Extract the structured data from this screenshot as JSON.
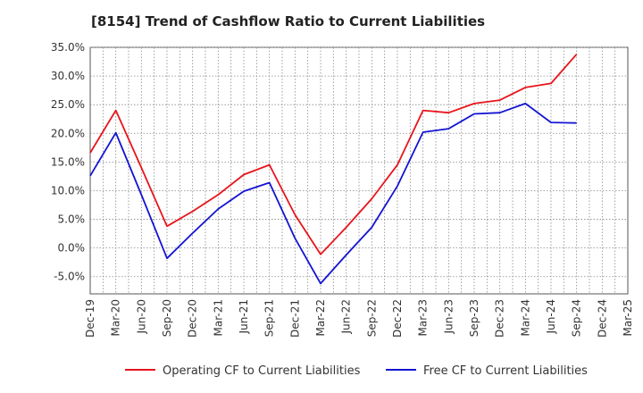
{
  "chart_data": {
    "type": "line",
    "title": "[8154]  Trend of Cashflow Ratio to Current Liabilities",
    "xlabel": "",
    "ylabel": "",
    "ylim": [
      -8.0,
      35.0
    ],
    "yticks": [
      "35.0%",
      "30.0%",
      "25.0%",
      "20.0%",
      "15.0%",
      "10.0%",
      "5.0%",
      "0.0%",
      "-5.0%"
    ],
    "ytick_values": [
      35,
      30,
      25,
      20,
      15,
      10,
      5,
      0,
      -5
    ],
    "categories": [
      "Dec-19",
      "Mar-20",
      "Jun-20",
      "Sep-20",
      "Dec-20",
      "Mar-21",
      "Jun-21",
      "Sep-21",
      "Dec-21",
      "Mar-22",
      "Jun-22",
      "Sep-22",
      "Dec-22",
      "Mar-23",
      "Jun-23",
      "Sep-23",
      "Dec-23",
      "Mar-24",
      "Jun-24",
      "Sep-24",
      "Dec-24",
      "Mar-25"
    ],
    "grid": true,
    "legend_position": "bottom",
    "series": [
      {
        "name": "Operating CF to Current Liabilities",
        "color": "#e8141b",
        "values": [
          16.6,
          24.0,
          14.0,
          3.8,
          6.4,
          9.3,
          12.8,
          14.5,
          5.8,
          -1.1,
          3.6,
          8.6,
          14.5,
          24.0,
          23.6,
          25.2,
          25.8,
          28.0,
          28.7,
          33.8,
          null,
          null
        ]
      },
      {
        "name": "Free CF to Current Liabilities",
        "color": "#1414d2",
        "values": [
          12.6,
          20.1,
          9.3,
          -1.8,
          2.6,
          6.8,
          9.9,
          11.4,
          1.7,
          -6.2,
          -1.2,
          3.6,
          10.8,
          20.2,
          20.8,
          23.4,
          23.6,
          25.2,
          21.9,
          21.8,
          null,
          null
        ]
      }
    ]
  }
}
